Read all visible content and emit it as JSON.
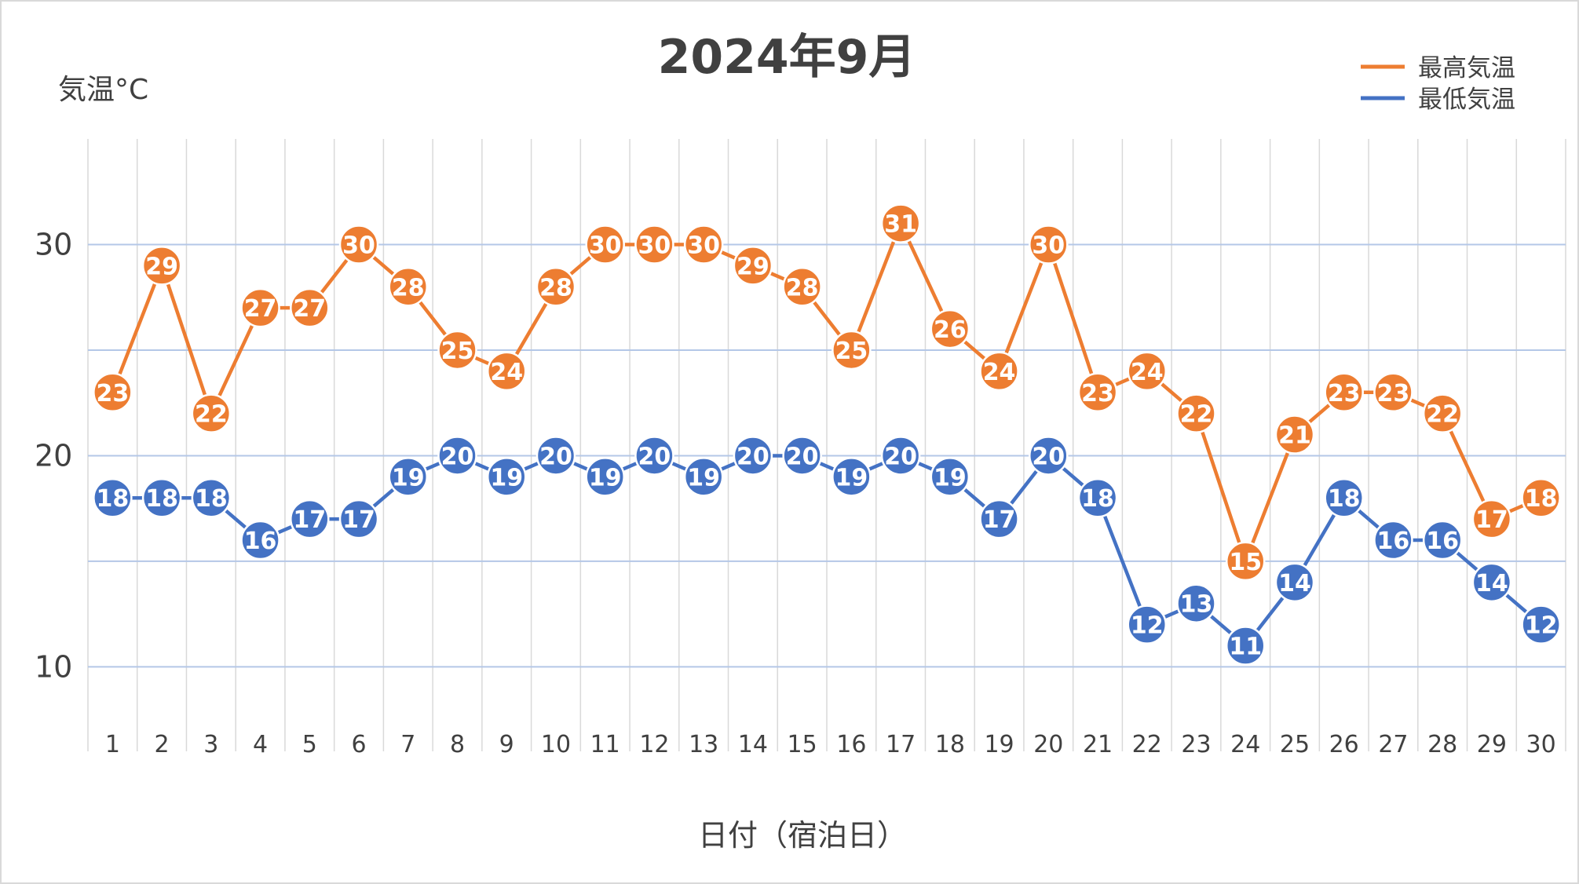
{
  "chart_data": {
    "type": "line",
    "title": "2024年9月",
    "ylabel": "気温°C",
    "xlabel": "日付（宿泊日）",
    "ylim": [
      6,
      35
    ],
    "yticks": [
      10,
      20,
      30
    ],
    "gridlines_at": [
      10,
      15,
      20,
      25,
      30
    ],
    "grid": true,
    "legend_position": "top-right",
    "categories": [
      "1",
      "2",
      "3",
      "4",
      "5",
      "6",
      "7",
      "8",
      "9",
      "10",
      "11",
      "12",
      "13",
      "14",
      "15",
      "16",
      "17",
      "18",
      "19",
      "20",
      "21",
      "22",
      "23",
      "24",
      "25",
      "26",
      "27",
      "28",
      "29",
      "30"
    ],
    "series": [
      {
        "name": "最高気温",
        "color": "#ED7D31",
        "values": [
          23,
          29,
          22,
          27,
          27,
          30,
          28,
          25,
          24,
          28,
          30,
          30,
          30,
          29,
          28,
          25,
          31,
          26,
          24,
          30,
          23,
          24,
          22,
          15,
          21,
          23,
          23,
          22,
          17,
          18
        ]
      },
      {
        "name": "最低気温",
        "color": "#4472C4",
        "values": [
          18,
          18,
          18,
          16,
          17,
          17,
          19,
          20,
          19,
          20,
          19,
          20,
          19,
          20,
          20,
          19,
          20,
          19,
          17,
          20,
          18,
          12,
          13,
          11,
          14,
          18,
          16,
          16,
          14,
          12
        ]
      }
    ]
  }
}
